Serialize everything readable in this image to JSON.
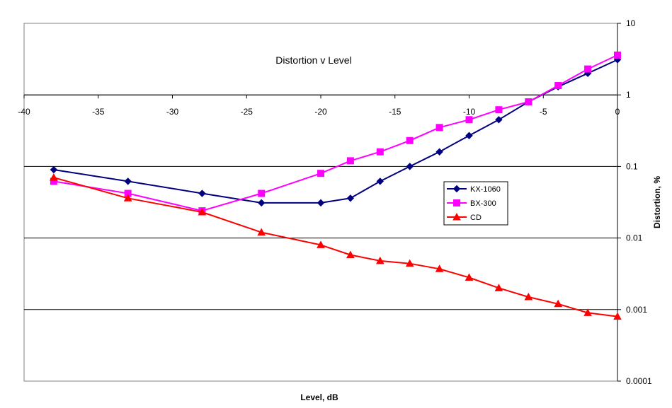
{
  "chart_data": {
    "type": "line",
    "title": "Distortion v Level",
    "xlabel": "Level, dB",
    "ylabel": "Distortion, %",
    "xlim": [
      -40,
      0
    ],
    "ylim": [
      0.0001,
      10
    ],
    "y_scale": "log",
    "x_ticks": [
      "-40",
      "-35",
      "-30",
      "-25",
      "-20",
      "-15",
      "-10",
      "-5",
      "0"
    ],
    "y_ticks": [
      "10",
      "1",
      "0.1",
      "0.01",
      "0.001",
      "0.0001"
    ],
    "grid": "horizontal major",
    "legend_position": "right-center",
    "series": [
      {
        "name": "KX-1060",
        "color": "#000080",
        "marker": "diamond",
        "points": [
          [
            -38,
            0.09
          ],
          [
            -33,
            0.062
          ],
          [
            -28,
            0.042
          ],
          [
            -24,
            0.031
          ],
          [
            -20,
            0.031
          ],
          [
            -18,
            0.036
          ],
          [
            -16,
            0.062
          ],
          [
            -14,
            0.1
          ],
          [
            -12,
            0.16
          ],
          [
            -10,
            0.27
          ],
          [
            -8,
            0.45
          ],
          [
            -6,
            0.8
          ],
          [
            -4,
            1.3
          ],
          [
            -2,
            2.0
          ],
          [
            0,
            3.1
          ]
        ]
      },
      {
        "name": "BX-300",
        "color": "#FF00FF",
        "marker": "square",
        "points": [
          [
            -38,
            0.062
          ],
          [
            -33,
            0.042
          ],
          [
            -28,
            0.024
          ],
          [
            -24,
            0.042
          ],
          [
            -20,
            0.08
          ],
          [
            -18,
            0.12
          ],
          [
            -16,
            0.16
          ],
          [
            -14,
            0.23
          ],
          [
            -12,
            0.35
          ],
          [
            -10,
            0.45
          ],
          [
            -8,
            0.62
          ],
          [
            -6,
            0.8
          ],
          [
            -4,
            1.35
          ],
          [
            -2,
            2.3
          ],
          [
            0,
            3.6
          ]
        ]
      },
      {
        "name": "CD",
        "color": "#FF0000",
        "marker": "triangle",
        "points": [
          [
            -38,
            0.07
          ],
          [
            -33,
            0.036
          ],
          [
            -28,
            0.023
          ],
          [
            -24,
            0.012
          ],
          [
            -20,
            0.008
          ],
          [
            -18,
            0.0058
          ],
          [
            -16,
            0.0048
          ],
          [
            -14,
            0.0044
          ],
          [
            -12,
            0.0037
          ],
          [
            -10,
            0.0028
          ],
          [
            -8,
            0.002
          ],
          [
            -6,
            0.0015
          ],
          [
            -4,
            0.0012
          ],
          [
            -2,
            0.0009
          ],
          [
            0,
            0.0008
          ]
        ]
      }
    ]
  }
}
